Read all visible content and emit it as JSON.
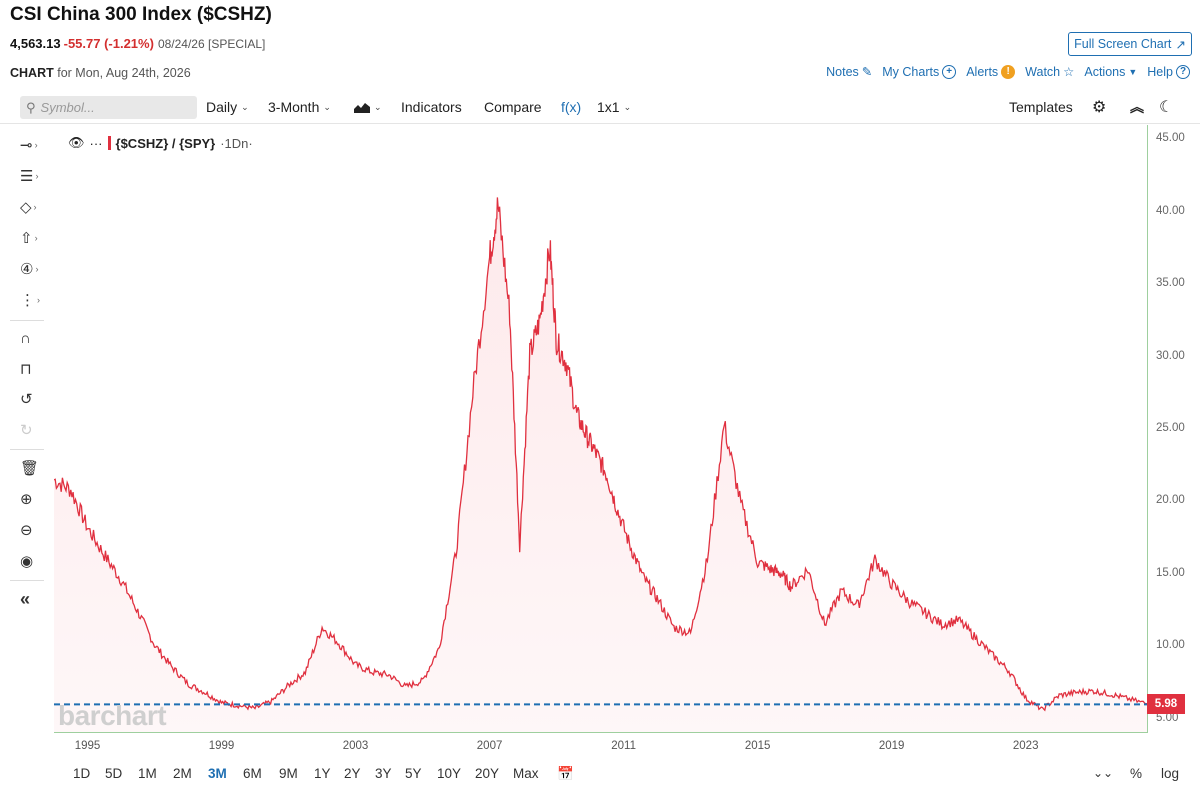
{
  "header": {
    "title": "CSI China 300 Index ($CSHZ)",
    "last": "4,563.13",
    "change": "-55.77 (-1.21%)",
    "date": "08/24/26 [SPECIAL]",
    "full_screen_label": "Full Screen Chart",
    "chart_label": "CHART",
    "chart_for": "for Mon, Aug 24th, 2026"
  },
  "top_links": {
    "notes": "Notes",
    "my_charts": "My Charts",
    "alerts": "Alerts",
    "watch": "Watch",
    "actions": "Actions",
    "help": "Help"
  },
  "toolbar": {
    "symbol_placeholder": "Symbol...",
    "interval": "Daily",
    "range": "3-Month",
    "indicators": "Indicators",
    "compare": "Compare",
    "fx": "f(x)",
    "layout": "1x1",
    "templates": "Templates"
  },
  "legend": {
    "symbol": "{$CSHZ} / {SPY}",
    "period": "·1Dn·"
  },
  "watermark": "barchart",
  "last_value_badge": "5.98",
  "bottom": {
    "ranges": [
      "1D",
      "5D",
      "1M",
      "2M",
      "3M",
      "6M",
      "9M",
      "1Y",
      "2Y",
      "3Y",
      "5Y",
      "10Y",
      "20Y",
      "Max"
    ],
    "active_range": "3M",
    "percent": "%",
    "log": "log"
  },
  "colors": {
    "line": "#e0303f",
    "fill": "#fde8ea",
    "dashed_line": "#1f6fb2",
    "link": "#1f6fb2",
    "negative": "#d32f2f"
  },
  "chart_data": {
    "type": "area",
    "title": "",
    "series": [
      {
        "name": "{$CSHZ} / {SPY}",
        "x": [
          1994.0,
          1994.5,
          1995.0,
          1995.5,
          1996.0,
          1996.5,
          1997.0,
          1997.5,
          1998.0,
          1998.5,
          1999.0,
          1999.5,
          2000.0,
          2000.5,
          2001.0,
          2001.5,
          2002.0,
          2002.5,
          2003.0,
          2003.5,
          2004.0,
          2004.5,
          2005.0,
          2005.5,
          2006.0,
          2006.5,
          2007.0,
          2007.25,
          2007.6,
          2007.9,
          2008.2,
          2008.5,
          2008.8,
          2009.0,
          2009.3,
          2009.6,
          2009.9,
          2010.2,
          2010.5,
          2010.8,
          2011.2,
          2011.6,
          2012.0,
          2012.5,
          2013.0,
          2013.5,
          2014.0,
          2014.5,
          2015.0,
          2015.4,
          2015.7,
          2016.0,
          2016.5,
          2017.0,
          2017.5,
          2018.0,
          2018.5,
          2019.0,
          2019.5,
          2020.0,
          2020.5,
          2021.0,
          2021.5,
          2022.0,
          2022.5,
          2023.0,
          2023.5,
          2024.0,
          2024.5,
          2025.0,
          2025.5,
          2026.0,
          2026.65
        ],
        "values": [
          21.5,
          20.8,
          18.2,
          16.3,
          14.6,
          12.4,
          10.1,
          8.6,
          7.4,
          6.8,
          6.1,
          5.9,
          5.7,
          6.2,
          7.3,
          8.2,
          11.3,
          10.2,
          8.7,
          8.2,
          8.0,
          7.2,
          7.6,
          9.9,
          16.5,
          27.5,
          36.8,
          40.5,
          33.0,
          17.0,
          30.1,
          32.5,
          37.5,
          31.0,
          29.5,
          26.0,
          24.5,
          23.2,
          21.8,
          19.5,
          16.9,
          14.7,
          13.3,
          11.3,
          10.9,
          16.0,
          25.3,
          19.8,
          15.8,
          15.3,
          15.0,
          14.1,
          15.3,
          11.5,
          13.8,
          12.8,
          16.0,
          14.3,
          13.1,
          12.3,
          11.5,
          11.8,
          10.6,
          9.4,
          8.3,
          6.4,
          5.6,
          6.6,
          6.8,
          6.9,
          6.7,
          6.4,
          6.0
        ]
      }
    ],
    "reference_line": 5.98,
    "ylim": [
      4,
      46
    ],
    "xlim": [
      1994.0,
      2026.65
    ],
    "y_ticks": [
      5.0,
      10.0,
      15.0,
      20.0,
      25.0,
      30.0,
      35.0,
      40.0,
      45.0
    ],
    "y_tick_labels": [
      "5.00",
      "10.00",
      "15.00",
      "20.00",
      "25.00",
      "30.00",
      "35.00",
      "40.00",
      "45.00"
    ],
    "x_ticks": [
      1995,
      1999,
      2003,
      2007,
      2011,
      2015,
      2019,
      2023
    ],
    "x_tick_labels": [
      "1995",
      "1999",
      "2003",
      "2007",
      "2011",
      "2015",
      "2019",
      "2023"
    ],
    "xlabel": "",
    "ylabel": "",
    "grid": false,
    "y_axis_position": "right"
  }
}
